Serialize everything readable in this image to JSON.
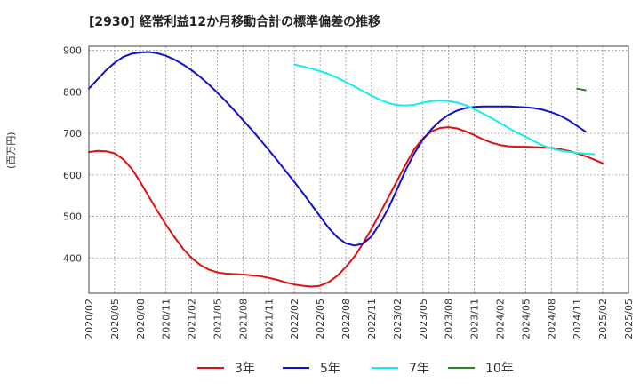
{
  "chart_data": {
    "type": "line",
    "title": "[2930]  経常利益12か月移動合計の標準偏差の推移",
    "ylabel": "(百万円)",
    "xlabel": "",
    "ylim": [
      315,
      910
    ],
    "xlim": [
      "2020-02",
      "2025-05"
    ],
    "y_ticks": [
      400,
      500,
      600,
      700,
      800,
      900
    ],
    "x_ticks": [
      "2020/02",
      "2020/05",
      "2020/08",
      "2020/11",
      "2021/02",
      "2021/05",
      "2021/08",
      "2021/11",
      "2022/02",
      "2022/05",
      "2022/08",
      "2022/11",
      "2023/02",
      "2023/05",
      "2023/08",
      "2023/11",
      "2024/02",
      "2024/05",
      "2024/08",
      "2024/11",
      "2025/02",
      "2025/05"
    ],
    "grid": true,
    "legend_position": "bottom",
    "series": [
      {
        "name": "3年",
        "color": "#dd1111",
        "points": [
          [
            "2020-02",
            655
          ],
          [
            "2020-03",
            658
          ],
          [
            "2020-04",
            657
          ],
          [
            "2020-05",
            652
          ],
          [
            "2020-06",
            638
          ],
          [
            "2020-07",
            615
          ],
          [
            "2020-08",
            583
          ],
          [
            "2020-09",
            548
          ],
          [
            "2020-10",
            513
          ],
          [
            "2020-11",
            480
          ],
          [
            "2020-12",
            450
          ],
          [
            "2021-01",
            422
          ],
          [
            "2021-02",
            400
          ],
          [
            "2021-03",
            383
          ],
          [
            "2021-04",
            372
          ],
          [
            "2021-05",
            365
          ],
          [
            "2021-06",
            362
          ],
          [
            "2021-07",
            361
          ],
          [
            "2021-08",
            360
          ],
          [
            "2021-09",
            358
          ],
          [
            "2021-10",
            356
          ],
          [
            "2021-11",
            352
          ],
          [
            "2021-12",
            347
          ],
          [
            "2022-01",
            341
          ],
          [
            "2022-02",
            336
          ],
          [
            "2022-03",
            333
          ],
          [
            "2022-04",
            331
          ],
          [
            "2022-05",
            333
          ],
          [
            "2022-06",
            342
          ],
          [
            "2022-07",
            357
          ],
          [
            "2022-08",
            378
          ],
          [
            "2022-09",
            403
          ],
          [
            "2022-10",
            435
          ],
          [
            "2022-11",
            470
          ],
          [
            "2022-12",
            508
          ],
          [
            "2023-01",
            547
          ],
          [
            "2023-02",
            587
          ],
          [
            "2023-03",
            626
          ],
          [
            "2023-04",
            662
          ],
          [
            "2023-05",
            688
          ],
          [
            "2023-06",
            705
          ],
          [
            "2023-07",
            713
          ],
          [
            "2023-08",
            715
          ],
          [
            "2023-09",
            712
          ],
          [
            "2023-10",
            705
          ],
          [
            "2023-11",
            696
          ],
          [
            "2023-12",
            686
          ],
          [
            "2024-01",
            678
          ],
          [
            "2024-02",
            672
          ],
          [
            "2024-03",
            669
          ],
          [
            "2024-04",
            668
          ],
          [
            "2024-05",
            668
          ],
          [
            "2024-06",
            667
          ],
          [
            "2024-07",
            666
          ],
          [
            "2024-08",
            665
          ],
          [
            "2024-09",
            662
          ],
          [
            "2024-10",
            658
          ],
          [
            "2024-11",
            652
          ],
          [
            "2024-12",
            645
          ],
          [
            "2025-01",
            637
          ],
          [
            "2025-02",
            628
          ]
        ]
      },
      {
        "name": "5年",
        "color": "#1111cc",
        "points": [
          [
            "2020-02",
            808
          ],
          [
            "2020-03",
            830
          ],
          [
            "2020-04",
            852
          ],
          [
            "2020-05",
            870
          ],
          [
            "2020-06",
            884
          ],
          [
            "2020-07",
            892
          ],
          [
            "2020-08",
            895
          ],
          [
            "2020-09",
            896
          ],
          [
            "2020-10",
            893
          ],
          [
            "2020-11",
            887
          ],
          [
            "2020-12",
            878
          ],
          [
            "2021-01",
            866
          ],
          [
            "2021-02",
            852
          ],
          [
            "2021-03",
            836
          ],
          [
            "2021-04",
            818
          ],
          [
            "2021-05",
            798
          ],
          [
            "2021-06",
            777
          ],
          [
            "2021-07",
            755
          ],
          [
            "2021-08",
            732
          ],
          [
            "2021-09",
            709
          ],
          [
            "2021-10",
            685
          ],
          [
            "2021-11",
            660
          ],
          [
            "2021-12",
            635
          ],
          [
            "2022-01",
            609
          ],
          [
            "2022-02",
            583
          ],
          [
            "2022-03",
            556
          ],
          [
            "2022-04",
            528
          ],
          [
            "2022-05",
            500
          ],
          [
            "2022-06",
            472
          ],
          [
            "2022-07",
            450
          ],
          [
            "2022-08",
            435
          ],
          [
            "2022-09",
            430
          ],
          [
            "2022-10",
            434
          ],
          [
            "2022-11",
            452
          ],
          [
            "2022-12",
            483
          ],
          [
            "2023-01",
            521
          ],
          [
            "2023-02",
            566
          ],
          [
            "2023-03",
            612
          ],
          [
            "2023-04",
            652
          ],
          [
            "2023-05",
            685
          ],
          [
            "2023-06",
            710
          ],
          [
            "2023-07",
            730
          ],
          [
            "2023-08",
            745
          ],
          [
            "2023-09",
            755
          ],
          [
            "2023-10",
            761
          ],
          [
            "2023-11",
            764
          ],
          [
            "2023-12",
            765
          ],
          [
            "2024-01",
            765
          ],
          [
            "2024-02",
            765
          ],
          [
            "2024-03",
            765
          ],
          [
            "2024-04",
            764
          ],
          [
            "2024-05",
            763
          ],
          [
            "2024-06",
            761
          ],
          [
            "2024-07",
            757
          ],
          [
            "2024-08",
            751
          ],
          [
            "2024-09",
            743
          ],
          [
            "2024-10",
            732
          ],
          [
            "2024-11",
            718
          ],
          [
            "2024-12",
            704
          ]
        ]
      },
      {
        "name": "7年",
        "color": "#11eeee",
        "points": [
          [
            "2022-02",
            866
          ],
          [
            "2022-03",
            861
          ],
          [
            "2022-04",
            856
          ],
          [
            "2022-05",
            850
          ],
          [
            "2022-06",
            843
          ],
          [
            "2022-07",
            834
          ],
          [
            "2022-08",
            824
          ],
          [
            "2022-09",
            813
          ],
          [
            "2022-10",
            802
          ],
          [
            "2022-11",
            791
          ],
          [
            "2022-12",
            781
          ],
          [
            "2023-01",
            773
          ],
          [
            "2023-02",
            768
          ],
          [
            "2023-03",
            767
          ],
          [
            "2023-04",
            769
          ],
          [
            "2023-05",
            774
          ],
          [
            "2023-06",
            778
          ],
          [
            "2023-07",
            779
          ],
          [
            "2023-08",
            778
          ],
          [
            "2023-09",
            774
          ],
          [
            "2023-10",
            768
          ],
          [
            "2023-11",
            759
          ],
          [
            "2023-12",
            748
          ],
          [
            "2024-01",
            737
          ],
          [
            "2024-02",
            725
          ],
          [
            "2024-03",
            713
          ],
          [
            "2024-04",
            702
          ],
          [
            "2024-05",
            692
          ],
          [
            "2024-06",
            681
          ],
          [
            "2024-07",
            671
          ],
          [
            "2024-08",
            664
          ],
          [
            "2024-09",
            659
          ],
          [
            "2024-10",
            656
          ],
          [
            "2024-11",
            653
          ],
          [
            "2024-12",
            651
          ],
          [
            "2025-01",
            650
          ]
        ]
      },
      {
        "name": "10年",
        "color": "#228822",
        "points": [
          [
            "2024-11",
            808
          ],
          [
            "2024-12",
            804
          ]
        ]
      }
    ]
  }
}
